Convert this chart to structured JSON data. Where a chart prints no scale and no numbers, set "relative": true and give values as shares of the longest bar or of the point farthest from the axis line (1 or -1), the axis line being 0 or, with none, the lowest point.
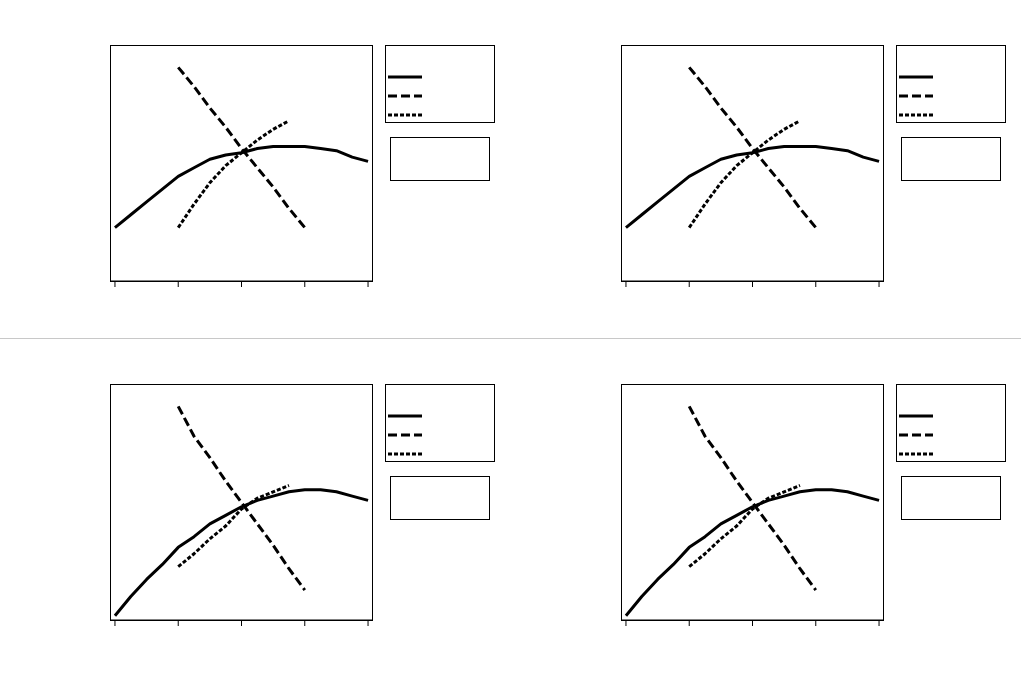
{
  "chart_data": [
    {
      "type": "line",
      "relative": true,
      "categories": [
        null,
        null,
        null,
        null,
        null,
        null,
        null,
        null,
        null,
        null,
        null,
        null,
        null,
        null,
        null,
        null,
        null
      ],
      "series": [
        {
          "color": "#000000",
          "line_style": "solid",
          "values": [
            0.25,
            0.31,
            0.37,
            0.43,
            0.49,
            0.53,
            0.57,
            0.59,
            0.6,
            0.62,
            0.63,
            0.63,
            0.63,
            0.62,
            0.61,
            0.58,
            0.56
          ]
        },
        {
          "color": "#000000",
          "line_style": "dashed",
          "values": [
            null,
            null,
            null,
            null,
            1.0,
            0.91,
            0.81,
            0.72,
            0.62,
            0.53,
            0.44,
            0.34,
            0.25,
            null,
            null,
            null,
            null
          ]
        },
        {
          "color": "#000000",
          "line_style": "dotted",
          "values": [
            null,
            null,
            null,
            null,
            0.25,
            0.36,
            0.46,
            0.54,
            0.6,
            0.66,
            0.71,
            0.75,
            null,
            null,
            null,
            null,
            null
          ]
        }
      ]
    },
    {
      "type": "line",
      "relative": true,
      "categories": [
        null,
        null,
        null,
        null,
        null,
        null,
        null,
        null,
        null,
        null,
        null,
        null,
        null,
        null,
        null,
        null,
        null
      ],
      "series": [
        {
          "color": "#000000",
          "line_style": "solid",
          "values": [
            0.25,
            0.31,
            0.37,
            0.43,
            0.49,
            0.53,
            0.57,
            0.59,
            0.6,
            0.62,
            0.63,
            0.63,
            0.63,
            0.62,
            0.61,
            0.58,
            0.56
          ]
        },
        {
          "color": "#000000",
          "line_style": "dashed",
          "values": [
            null,
            null,
            null,
            null,
            1.0,
            0.91,
            0.81,
            0.72,
            0.62,
            0.53,
            0.44,
            0.34,
            0.25,
            null,
            null,
            null,
            null
          ]
        },
        {
          "color": "#000000",
          "line_style": "dotted",
          "values": [
            null,
            null,
            null,
            null,
            0.25,
            0.36,
            0.46,
            0.54,
            0.6,
            0.66,
            0.71,
            0.75,
            null,
            null,
            null,
            null,
            null
          ]
        }
      ]
    },
    {
      "type": "line",
      "relative": true,
      "categories": [
        null,
        null,
        null,
        null,
        null,
        null,
        null,
        null,
        null,
        null,
        null,
        null,
        null,
        null,
        null,
        null,
        null
      ],
      "series": [
        {
          "color": "#000000",
          "line_style": "solid",
          "values": [
            0.02,
            0.11,
            0.19,
            0.26,
            0.34,
            0.39,
            0.45,
            0.49,
            0.53,
            0.56,
            0.58,
            0.6,
            0.61,
            0.61,
            0.6,
            0.58,
            0.56
          ]
        },
        {
          "color": "#000000",
          "line_style": "dashed",
          "values": [
            null,
            null,
            null,
            null,
            1.0,
            0.86,
            0.76,
            0.65,
            0.55,
            0.45,
            0.35,
            0.24,
            0.14,
            null,
            null,
            null,
            null
          ]
        },
        {
          "color": "#000000",
          "line_style": "dotted",
          "values": [
            null,
            null,
            null,
            null,
            0.25,
            0.31,
            0.38,
            0.44,
            0.52,
            0.57,
            0.6,
            0.63,
            null,
            null,
            null,
            null,
            null
          ]
        }
      ]
    },
    {
      "type": "line",
      "relative": true,
      "categories": [
        null,
        null,
        null,
        null,
        null,
        null,
        null,
        null,
        null,
        null,
        null,
        null,
        null,
        null,
        null,
        null,
        null
      ],
      "series": [
        {
          "color": "#000000",
          "line_style": "solid",
          "values": [
            0.02,
            0.11,
            0.19,
            0.26,
            0.34,
            0.39,
            0.45,
            0.49,
            0.53,
            0.56,
            0.58,
            0.6,
            0.61,
            0.61,
            0.6,
            0.58,
            0.56
          ]
        },
        {
          "color": "#000000",
          "line_style": "dashed",
          "values": [
            null,
            null,
            null,
            null,
            1.0,
            0.86,
            0.76,
            0.65,
            0.55,
            0.45,
            0.35,
            0.24,
            0.14,
            null,
            null,
            null,
            null
          ]
        },
        {
          "color": "#000000",
          "line_style": "dotted",
          "values": [
            null,
            null,
            null,
            null,
            0.25,
            0.31,
            0.38,
            0.44,
            0.52,
            0.57,
            0.6,
            0.63,
            null,
            null,
            null,
            null,
            null
          ]
        }
      ]
    }
  ]
}
